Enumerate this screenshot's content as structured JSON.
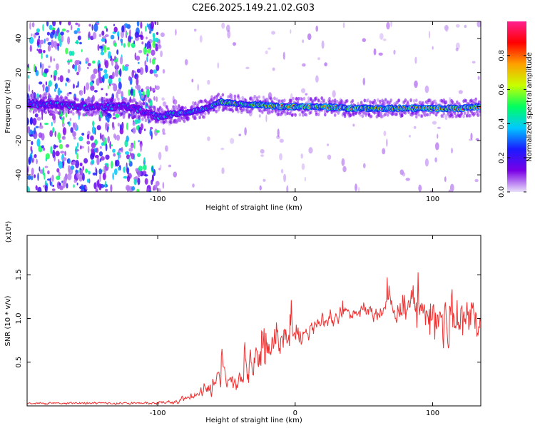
{
  "title": "C2E6.2025.149.21.02.G03",
  "chart_data": [
    {
      "type": "heatmap",
      "xlabel": "Height of straight line (km)",
      "ylabel": "Frequency (Hz)",
      "xlim": [
        -195,
        135
      ],
      "ylim": [
        -50,
        50
      ],
      "x_ticks": [
        -100,
        0,
        100
      ],
      "x_tick_labels": [
        "-100",
        "0",
        "100"
      ],
      "y_ticks": [
        -40,
        -20,
        0,
        20,
        40
      ],
      "y_tick_labels": [
        "-40",
        "-20",
        "0",
        "20",
        "40"
      ],
      "ridge": {
        "x": [
          -195,
          -150,
          -120,
          -100,
          -95,
          -85,
          -75,
          -65,
          -55,
          -45,
          -35,
          -25,
          -10,
          0,
          20,
          40,
          60,
          80,
          100,
          120,
          135
        ],
        "freq": [
          2,
          0,
          0,
          -6,
          -5,
          -4,
          -3,
          -1,
          3,
          2,
          1,
          1,
          0,
          0,
          0,
          -1,
          -1,
          -1,
          -1,
          -1,
          0
        ]
      },
      "colorbar": {
        "label": "Normalized spectral amplitude",
        "range": [
          0,
          1
        ],
        "ticks": [
          "0.0",
          "0.2",
          "0.4",
          "0.6",
          "0.8"
        ],
        "tick_values": [
          0.0,
          0.2,
          0.4,
          0.6,
          0.8
        ],
        "colors": [
          "#e8e0fa",
          "#7a00e6",
          "#1a1aff",
          "#00c8ff",
          "#00ff60",
          "#c8ff00",
          "#ffa000",
          "#ff0000",
          "#ff2090"
        ]
      }
    },
    {
      "type": "line",
      "xlabel": "Height of straight line (km)",
      "ylabel": "SNR (10 * v/v)",
      "scale_label": "(x10⁴)",
      "xlim": [
        -195,
        135
      ],
      "ylim": [
        0,
        1.95
      ],
      "x_ticks": [
        -100,
        0,
        100
      ],
      "x_tick_labels": [
        "-100",
        "0",
        "100"
      ],
      "y_ticks": [
        0.5,
        1.0,
        1.5
      ],
      "y_tick_labels": [
        "0.5",
        "1.0",
        "1.5"
      ],
      "color": "#ee3030",
      "series": [
        {
          "name": "SNR",
          "x": [
            -195,
            -160,
            -120,
            -90,
            -80,
            -70,
            -60,
            -55,
            -50,
            -40,
            -30,
            -25,
            -20,
            -10,
            0,
            10,
            20,
            30,
            40,
            50,
            60,
            70,
            80,
            90,
            95,
            100,
            105,
            110,
            120,
            135
          ],
          "values": [
            0.03,
            0.03,
            0.03,
            0.04,
            0.08,
            0.14,
            0.22,
            0.28,
            0.22,
            0.3,
            0.42,
            0.55,
            0.65,
            0.74,
            0.8,
            0.88,
            0.96,
            1.02,
            1.06,
            1.08,
            1.1,
            1.1,
            1.12,
            1.12,
            1.1,
            1.08,
            1.1,
            1.02,
            1.0,
            1.02
          ],
          "spread": [
            0.02,
            0.02,
            0.02,
            0.03,
            0.05,
            0.1,
            0.18,
            0.2,
            0.2,
            0.25,
            0.35,
            0.4,
            0.3,
            0.25,
            0.25,
            0.2,
            0.15,
            0.12,
            0.12,
            0.15,
            0.18,
            0.2,
            0.3,
            0.4,
            0.5,
            0.7,
            0.6,
            0.45,
            0.4,
            0.35
          ]
        }
      ]
    }
  ]
}
